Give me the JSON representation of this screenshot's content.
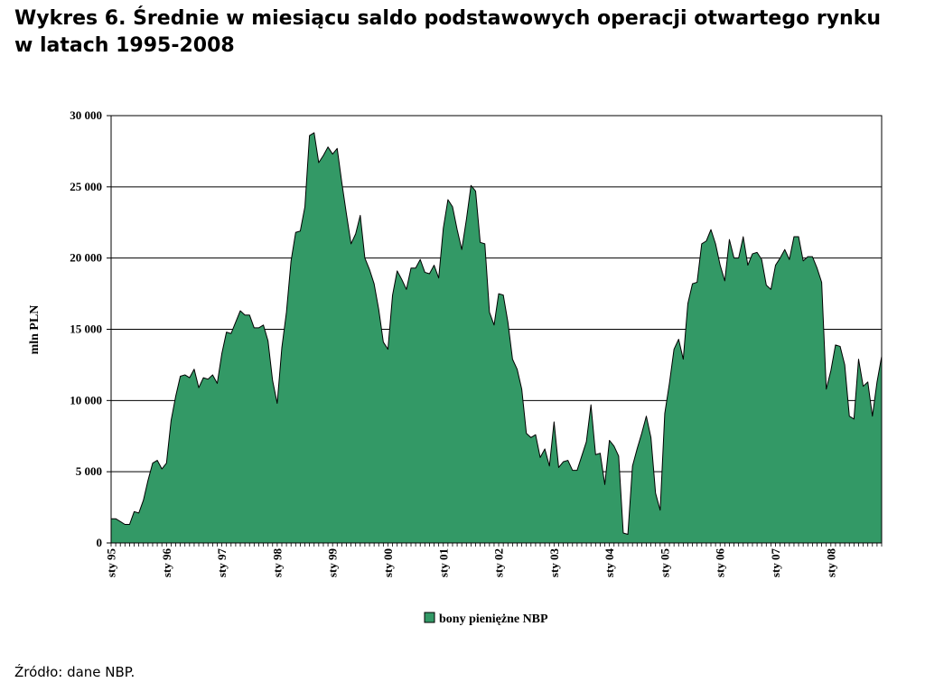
{
  "title_line1": "Wykres 6. Średnie w miesiącu saldo podstawowych operacji otwartego rynku",
  "title_line2": "w latach 1995-2008",
  "source": "Źródło: dane NBP.",
  "chart_data": {
    "type": "area",
    "ylabel": "mln PLN",
    "ylim": [
      0,
      30000
    ],
    "yticks": [
      0,
      5000,
      10000,
      15000,
      20000,
      25000,
      30000
    ],
    "ytick_labels": [
      "0",
      "5 000",
      "10 000",
      "15 000",
      "20 000",
      "25 000",
      "30 000"
    ],
    "xtick_labels": [
      "sty 95",
      "sty 96",
      "sty 97",
      "sty 98",
      "sty 99",
      "sty 00",
      "sty 01",
      "sty 02",
      "sty 03",
      "sty 04",
      "sty 05",
      "sty 06",
      "sty 07",
      "sty 08"
    ],
    "grid": true,
    "legend_position": "bottom",
    "fill_color": "#339966",
    "series": [
      {
        "name": "bony pieniężne NBP",
        "start": "1995-01",
        "values": [
          1700,
          1700,
          1500,
          1300,
          1300,
          2200,
          2100,
          3000,
          4400,
          5600,
          5800,
          5200,
          5600,
          8600,
          10300,
          11700,
          11800,
          11600,
          12200,
          10900,
          11600,
          11500,
          11800,
          11200,
          13300,
          14800,
          14700,
          15500,
          16300,
          16000,
          16000,
          15100,
          15100,
          15300,
          14200,
          11400,
          9800,
          13700,
          16200,
          19800,
          21800,
          21900,
          23600,
          28600,
          28800,
          26700,
          27200,
          27800,
          27300,
          27700,
          25300,
          23100,
          21000,
          21700,
          23000,
          20000,
          19200,
          18200,
          16400,
          14100,
          13600,
          17400,
          19100,
          18500,
          17800,
          19300,
          19300,
          19900,
          19000,
          18900,
          19500,
          18600,
          22100,
          24100,
          23600,
          22000,
          20600,
          22700,
          25100,
          24700,
          21100,
          21000,
          16200,
          15300,
          17500,
          17400,
          15500,
          12900,
          12200,
          10800,
          7700,
          7400,
          7600,
          6000,
          6600,
          5400,
          8500,
          5300,
          5700,
          5800,
          5100,
          5100,
          6100,
          7100,
          9700,
          6200,
          6300,
          4100,
          7200,
          6800,
          6100,
          700,
          600,
          5400,
          6600,
          7700,
          8900,
          7400,
          3500,
          2300,
          9100,
          11200,
          13600,
          14300,
          12900,
          16800,
          18200,
          18300,
          21000,
          21200,
          22000,
          21000,
          19500,
          18400,
          21300,
          20000,
          20000,
          21500,
          19500,
          20300,
          20400,
          19900,
          18100,
          17800,
          19500,
          20000,
          20600,
          19900,
          21500,
          21500,
          19800,
          20100,
          20100,
          19300,
          18300,
          10800,
          12100,
          13900,
          13800,
          12500,
          8900,
          8700,
          12900,
          11000,
          11300,
          8900,
          11300,
          13100
        ]
      }
    ]
  }
}
